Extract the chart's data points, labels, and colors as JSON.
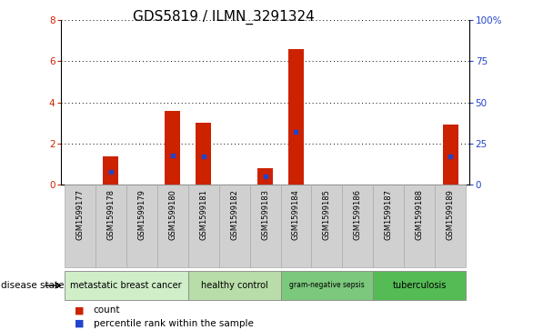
{
  "title": "GDS5819 / ILMN_3291324",
  "samples": [
    "GSM1599177",
    "GSM1599178",
    "GSM1599179",
    "GSM1599180",
    "GSM1599181",
    "GSM1599182",
    "GSM1599183",
    "GSM1599184",
    "GSM1599185",
    "GSM1599186",
    "GSM1599187",
    "GSM1599188",
    "GSM1599189"
  ],
  "counts": [
    0.0,
    1.4,
    0.0,
    3.6,
    3.0,
    0.0,
    0.8,
    6.6,
    0.0,
    0.0,
    0.0,
    0.0,
    2.9
  ],
  "percentiles": [
    0.0,
    8.0,
    0.0,
    18.0,
    17.0,
    0.0,
    5.0,
    32.0,
    0.0,
    0.0,
    0.0,
    0.0,
    17.0
  ],
  "bar_color": "#cc2200",
  "marker_color": "#2244cc",
  "ylim_left": [
    0,
    8
  ],
  "ylim_right": [
    0,
    100
  ],
  "yticks_left": [
    0,
    2,
    4,
    6,
    8
  ],
  "yticks_right": [
    0,
    25,
    50,
    75,
    100
  ],
  "ytick_labels_right": [
    "0",
    "25",
    "50",
    "75",
    "100%"
  ],
  "disease_groups": [
    {
      "label": "metastatic breast cancer",
      "start": 0,
      "end": 3,
      "color": "#d0eec8"
    },
    {
      "label": "healthy control",
      "start": 4,
      "end": 6,
      "color": "#b8dda8"
    },
    {
      "label": "gram-negative sepsis",
      "start": 7,
      "end": 9,
      "color": "#7cc87c"
    },
    {
      "label": "tuberculosis",
      "start": 10,
      "end": 12,
      "color": "#55bb55"
    }
  ],
  "disease_state_label": "disease state",
  "legend_count_label": "count",
  "legend_percentile_label": "percentile rank within the sample",
  "bar_width": 0.5,
  "background_color": "#ffffff",
  "plot_bg_color": "#ffffff",
  "tick_label_bg": "#d0d0d0",
  "grid_color": "#000000",
  "title_fontsize": 11,
  "axis_fontsize": 8,
  "tick_fontsize": 7.5
}
